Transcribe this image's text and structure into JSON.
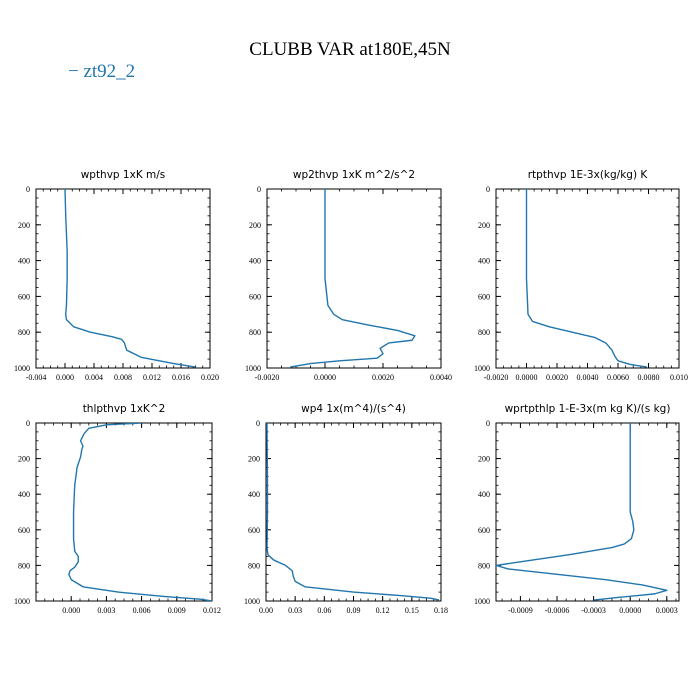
{
  "figure": {
    "title": "CLUBB VAR at180E,45N",
    "legend": [
      {
        "label": "zt92_2",
        "color": "#2176ae"
      }
    ]
  },
  "chart_data": [
    {
      "type": "line",
      "title": "wpthvp  1xK m/s",
      "xlim": [
        -0.004,
        0.02
      ],
      "xticks": [
        -0.004,
        0.0,
        0.004,
        0.008,
        0.012,
        0.016,
        0.02
      ],
      "xtick_labels": [
        "-0.004",
        "0.000",
        "0.004",
        "0.008",
        "0.012",
        "0.016",
        "0.020"
      ],
      "ylim": [
        1000,
        0
      ],
      "yticks": [
        0,
        200,
        400,
        600,
        800,
        1000
      ],
      "ytick_labels": [
        "0",
        "200",
        "400",
        "600",
        "800",
        "1000"
      ],
      "series": [
        {
          "name": "zt92_2",
          "color": "#2176ae",
          "x": [
            0.0,
            0.0001,
            0.0002,
            0.0003,
            0.0003,
            0.0002,
            0.0001,
            0.0002,
            0.0012,
            0.0035,
            0.0065,
            0.0078,
            0.0082,
            0.0085,
            0.0105,
            0.015,
            0.018
          ],
          "y": [
            0,
            150,
            250,
            350,
            500,
            650,
            700,
            730,
            770,
            800,
            825,
            840,
            860,
            900,
            940,
            975,
            995
          ]
        }
      ]
    },
    {
      "type": "line",
      "title": "wp2thvp  1xK m^2/s^2",
      "xlim": [
        -0.002,
        0.004
      ],
      "xticks": [
        -0.002,
        0.0,
        0.002,
        0.004
      ],
      "xtick_labels": [
        "-0.0020",
        "0.0000",
        "0.0020",
        "0.0040"
      ],
      "ylim": [
        1000,
        0
      ],
      "yticks": [
        0,
        200,
        400,
        600,
        800,
        1000
      ],
      "ytick_labels": [
        "0",
        "200",
        "400",
        "600",
        "800",
        "1000"
      ],
      "series": [
        {
          "name": "zt92_2",
          "color": "#2176ae",
          "x": [
            0.0,
            0.0,
            0.0,
            0.0,
            0.0001,
            0.0003,
            0.0006,
            0.0015,
            0.0025,
            0.0031,
            0.003,
            0.0022,
            0.0019,
            0.002,
            0.0018,
            0.0005,
            -0.0005,
            -0.0012
          ],
          "y": [
            0,
            150,
            300,
            500,
            650,
            700,
            730,
            760,
            790,
            820,
            845,
            860,
            890,
            920,
            945,
            960,
            975,
            995
          ]
        }
      ]
    },
    {
      "type": "line",
      "title": "rtpthvp  1E-3x(kg/kg) K",
      "xlim": [
        -0.002,
        0.01
      ],
      "xticks": [
        -0.002,
        0.0,
        0.002,
        0.004,
        0.006,
        0.008,
        0.01
      ],
      "xtick_labels": [
        "-0.0020",
        "0.0000",
        "0.0020",
        "0.0040",
        "0.0060",
        "0.0080",
        "0.010"
      ],
      "ylim": [
        1000,
        0
      ],
      "yticks": [
        0,
        200,
        400,
        600,
        800,
        1000
      ],
      "ytick_labels": [
        "0",
        "200",
        "400",
        "600",
        "800",
        "1000"
      ],
      "series": [
        {
          "name": "zt92_2",
          "color": "#2176ae",
          "x": [
            0.0,
            0.0,
            0.0,
            0.0,
            0.0001,
            0.0004,
            0.0015,
            0.003,
            0.0045,
            0.0052,
            0.0056,
            0.0058,
            0.006,
            0.0068,
            0.0079
          ],
          "y": [
            0,
            150,
            300,
            500,
            700,
            740,
            770,
            800,
            830,
            860,
            900,
            935,
            960,
            980,
            995
          ]
        }
      ]
    },
    {
      "type": "line",
      "title": "thlpthvp  1xK^2",
      "xlim": [
        -0.003,
        0.012
      ],
      "xticks": [
        0.0,
        0.003,
        0.006,
        0.009,
        0.012
      ],
      "xtick_labels": [
        "0.000",
        "0.003",
        "0.006",
        "0.009",
        "0.012"
      ],
      "ylim": [
        1000,
        0
      ],
      "yticks": [
        0,
        200,
        400,
        600,
        800,
        1000
      ],
      "ytick_labels": [
        "0",
        "200",
        "400",
        "600",
        "800",
        "1000"
      ],
      "series": [
        {
          "name": "zt92_2",
          "color": "#2176ae",
          "x": [
            0.006,
            0.003,
            0.0015,
            0.0011,
            0.0008,
            0.001,
            0.0009,
            0.0008,
            0.0005,
            0.0003,
            0.0002,
            0.0002,
            0.0003,
            0.0006,
            0.0006,
            0.0003,
            -0.0001,
            -0.0002,
            0.0,
            0.001,
            0.004,
            0.008,
            0.011,
            0.012
          ],
          "y": [
            0,
            10,
            30,
            60,
            100,
            130,
            150,
            190,
            250,
            350,
            500,
            650,
            720,
            750,
            780,
            810,
            830,
            850,
            880,
            920,
            950,
            975,
            990,
            1000
          ]
        }
      ]
    },
    {
      "type": "line",
      "title": "wp4  1x(m^4)/(s^4)",
      "xlim": [
        0.0,
        0.18
      ],
      "xticks": [
        0.0,
        0.03,
        0.06,
        0.09,
        0.12,
        0.15,
        0.18
      ],
      "xtick_labels": [
        "0.00",
        "0.03",
        "0.06",
        "0.09",
        "0.12",
        "0.15",
        "0.18"
      ],
      "ylim": [
        1000,
        0
      ],
      "yticks": [
        0,
        200,
        400,
        600,
        800,
        1000
      ],
      "ytick_labels": [
        "0",
        "200",
        "400",
        "600",
        "800",
        "1000"
      ],
      "series": [
        {
          "name": "zt92_2",
          "color": "#2176ae",
          "x": [
            0.001,
            0.0012,
            0.0015,
            0.0015,
            0.0012,
            0.001,
            0.002,
            0.008,
            0.02,
            0.027,
            0.028,
            0.03,
            0.04,
            0.09,
            0.14,
            0.17,
            0.178
          ],
          "y": [
            0,
            150,
            300,
            500,
            650,
            700,
            740,
            770,
            800,
            830,
            860,
            890,
            920,
            950,
            970,
            985,
            995
          ]
        }
      ]
    },
    {
      "type": "line",
      "title": "wprtpthlp  1-E-3x(m kg K)/(s kg)",
      "xlim": [
        -0.0011,
        0.0004
      ],
      "xticks": [
        -0.0009,
        -0.0006,
        -0.0003,
        0.0,
        0.0003
      ],
      "xtick_labels": [
        "-0.0009",
        "-0.0006",
        "-0.0003",
        "0.0000",
        "0.0003"
      ],
      "ylim": [
        1000,
        0
      ],
      "yticks": [
        0,
        200,
        400,
        600,
        800,
        1000
      ],
      "ytick_labels": [
        "0",
        "200",
        "400",
        "600",
        "800",
        "1000"
      ],
      "series": [
        {
          "name": "zt92_2",
          "color": "#2176ae",
          "x": [
            0.0,
            0.0,
            0.0,
            0.0,
            2e-05,
            3e-05,
            1e-05,
            -5e-05,
            -0.00015,
            -0.0005,
            -0.0009,
            -0.0011,
            -0.001,
            -0.0006,
            -0.0002,
            0.0001,
            0.0003,
            0.0002,
            -0.0001,
            -0.0003
          ],
          "y": [
            0,
            200,
            350,
            500,
            550,
            600,
            650,
            680,
            700,
            740,
            780,
            800,
            820,
            850,
            880,
            910,
            940,
            960,
            980,
            995
          ]
        }
      ]
    }
  ]
}
